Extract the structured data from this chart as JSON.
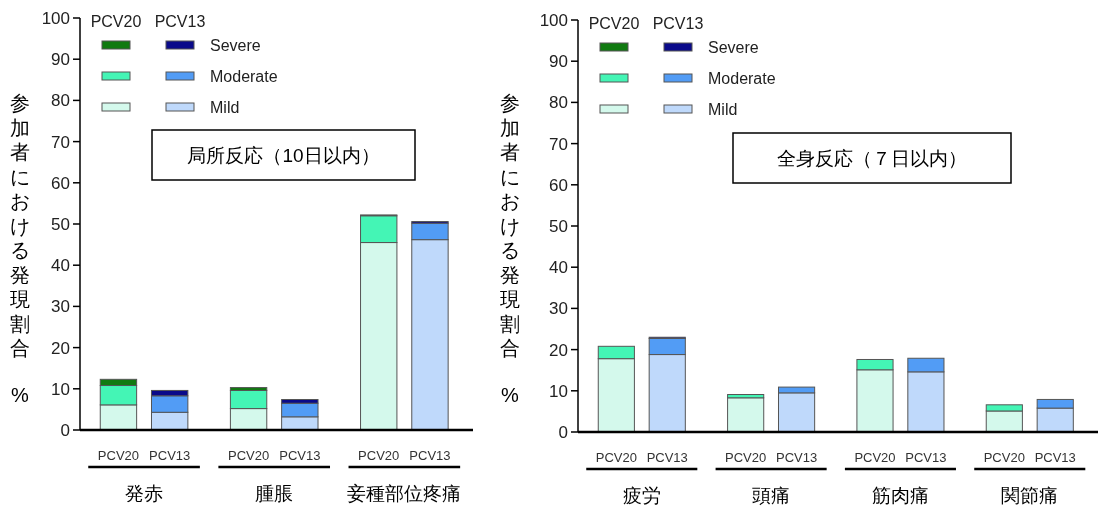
{
  "chart_data": [
    {
      "type": "bar",
      "stacked": true,
      "title": "局所反応（10日以内）",
      "ylabel": "参加者における発現割合 %",
      "categories": [
        "PCV20",
        "PCV13",
        "PCV20",
        "PCV13",
        "PCV20",
        "PCV13"
      ],
      "annotations": [
        "発赤",
        "腫脹",
        "妾種部位疼痛"
      ],
      "series": [
        {
          "color": "#d4f9ec",
          "values": [
            6.1,
            null,
            5.2,
            null,
            45.5,
            null
          ]
        },
        {
          "color": "#44f5b5",
          "values": [
            4.7,
            null,
            4.4,
            null,
            6.5,
            null
          ]
        },
        {
          "color": "#107a10",
          "values": [
            1.5,
            null,
            0.7,
            null,
            0.2,
            null
          ]
        },
        {
          "name": "Mild",
          "color": "#bfd9fb",
          "values": [
            null,
            4.3,
            null,
            3.2,
            null,
            46.2
          ]
        },
        {
          "name": "Moderate",
          "color": "#529cf5",
          "values": [
            null,
            4.0,
            null,
            3.3,
            null,
            4.0
          ]
        },
        {
          "name": "Severe",
          "color": "#0a0a8a",
          "values": [
            null,
            1.3,
            null,
            0.9,
            null,
            0.4
          ]
        }
      ],
      "ylim": [
        0,
        100
      ],
      "yticks": [
        0,
        10,
        20,
        30,
        40,
        50,
        60,
        70,
        80,
        90,
        100
      ],
      "legend": "top left"
    },
    {
      "type": "bar",
      "stacked": true,
      "title": "全身反応（７日以内）",
      "ylabel": "参加者における発現割合 %",
      "categories": [
        "PCV20",
        "PCV13",
        "PCV20",
        "PCV13",
        "PCV20",
        "PCV13",
        "PCV20",
        "PCV13"
      ],
      "annotations": [
        "疲労",
        "頭痛",
        "筋肉痛",
        "関節痛"
      ],
      "series": [
        {
          "color": "#d4f9ec",
          "values": [
            17.8,
            null,
            8.3,
            null,
            15.1,
            null,
            5.1,
            null
          ]
        },
        {
          "color": "#44f5b5",
          "values": [
            3.0,
            null,
            0.8,
            null,
            2.5,
            null,
            1.5,
            null
          ]
        },
        {
          "color": "#107a10",
          "values": [
            0,
            null,
            0,
            null,
            0,
            null,
            0,
            null
          ]
        },
        {
          "name": "Mild",
          "color": "#bfd9fb",
          "values": [
            null,
            18.8,
            null,
            9.5,
            null,
            14.6,
            null,
            5.8
          ]
        },
        {
          "name": "Moderate",
          "color": "#529cf5",
          "values": [
            null,
            3.9,
            null,
            1.4,
            null,
            3.3,
            null,
            2.1
          ]
        },
        {
          "name": "Severe",
          "color": "#0a0a8a",
          "values": [
            null,
            0.3,
            null,
            0,
            null,
            0,
            null,
            0
          ]
        }
      ],
      "ylim": [
        0,
        100
      ],
      "yticks": [
        0,
        10,
        20,
        30,
        40,
        50,
        60,
        70,
        80,
        90,
        100
      ],
      "legend": "top left"
    }
  ]
}
